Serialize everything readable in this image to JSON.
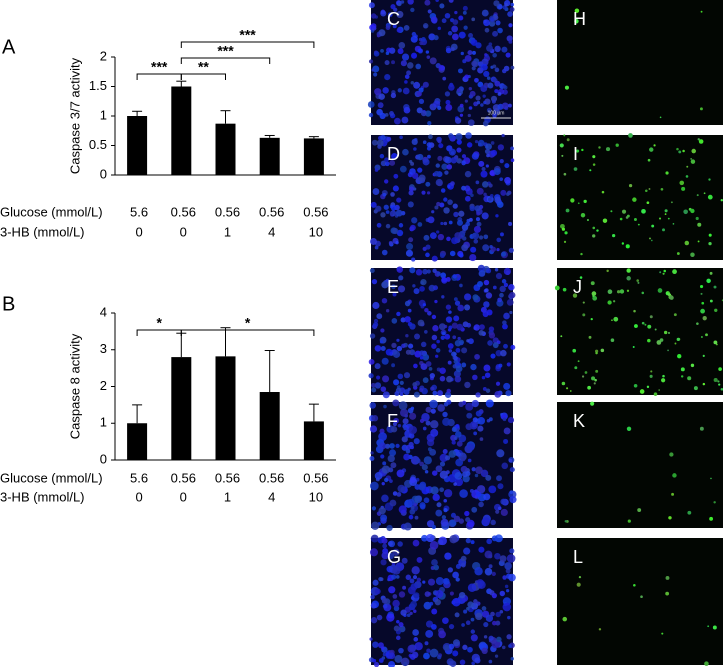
{
  "chart_data": [
    {
      "type": "bar",
      "panel_label": "A",
      "y_label": "Caspase 3/7 activity",
      "categories": [
        null,
        null,
        null,
        null,
        null
      ],
      "category_rows": [
        {
          "label": "Glucose (mmol/L)",
          "values": [
            "5.6",
            "0.56",
            "0.56",
            "0.56",
            "0.56"
          ]
        },
        {
          "label": "3-HB (mmol/L)",
          "values": [
            "0",
            "0",
            "1",
            "4",
            "10"
          ]
        }
      ],
      "values": [
        1.0,
        1.5,
        0.87,
        0.63,
        0.62
      ],
      "errors": [
        0.08,
        0.09,
        0.22,
        0.04,
        0.03
      ],
      "color": "#000000",
      "ylim": [
        0,
        2
      ],
      "yticks": [
        0,
        0.5,
        1,
        1.5,
        2
      ],
      "significance": [
        {
          "from": 0,
          "to": 1,
          "label": "***"
        },
        {
          "from": 1,
          "to": 2,
          "label": "**"
        },
        {
          "from": 1,
          "to": 3,
          "label": "***"
        },
        {
          "from": 1,
          "to": 4,
          "label": "***"
        }
      ]
    },
    {
      "type": "bar",
      "panel_label": "B",
      "y_label": "Caspase 8 activity",
      "categories": [
        null,
        null,
        null,
        null,
        null
      ],
      "category_rows": [
        {
          "label": "Glucose (mmol/L)",
          "values": [
            "5.6",
            "0.56",
            "0.56",
            "0.56",
            "0.56"
          ]
        },
        {
          "label": "3-HB (mmol/L)",
          "values": [
            "0",
            "0",
            "1",
            "4",
            "10"
          ]
        }
      ],
      "values": [
        1.0,
        2.8,
        2.82,
        1.85,
        1.05
      ],
      "errors": [
        0.5,
        0.65,
        0.78,
        1.13,
        0.47
      ],
      "color": "#000000",
      "ylim": [
        0,
        4
      ],
      "yticks": [
        0,
        1,
        2,
        3,
        4
      ],
      "significance": [
        {
          "from": 0,
          "to": 1,
          "label": "*"
        },
        {
          "from": 1,
          "to": 4,
          "label": "*"
        }
      ]
    }
  ],
  "images": {
    "panels": [
      {
        "label": "C",
        "scale_label": "100 µm"
      },
      {
        "label": "D"
      },
      {
        "label": "E"
      },
      {
        "label": "F"
      },
      {
        "label": "G"
      },
      {
        "label": "H"
      },
      {
        "label": "I"
      },
      {
        "label": "J"
      },
      {
        "label": "K"
      },
      {
        "label": "L"
      }
    ]
  }
}
